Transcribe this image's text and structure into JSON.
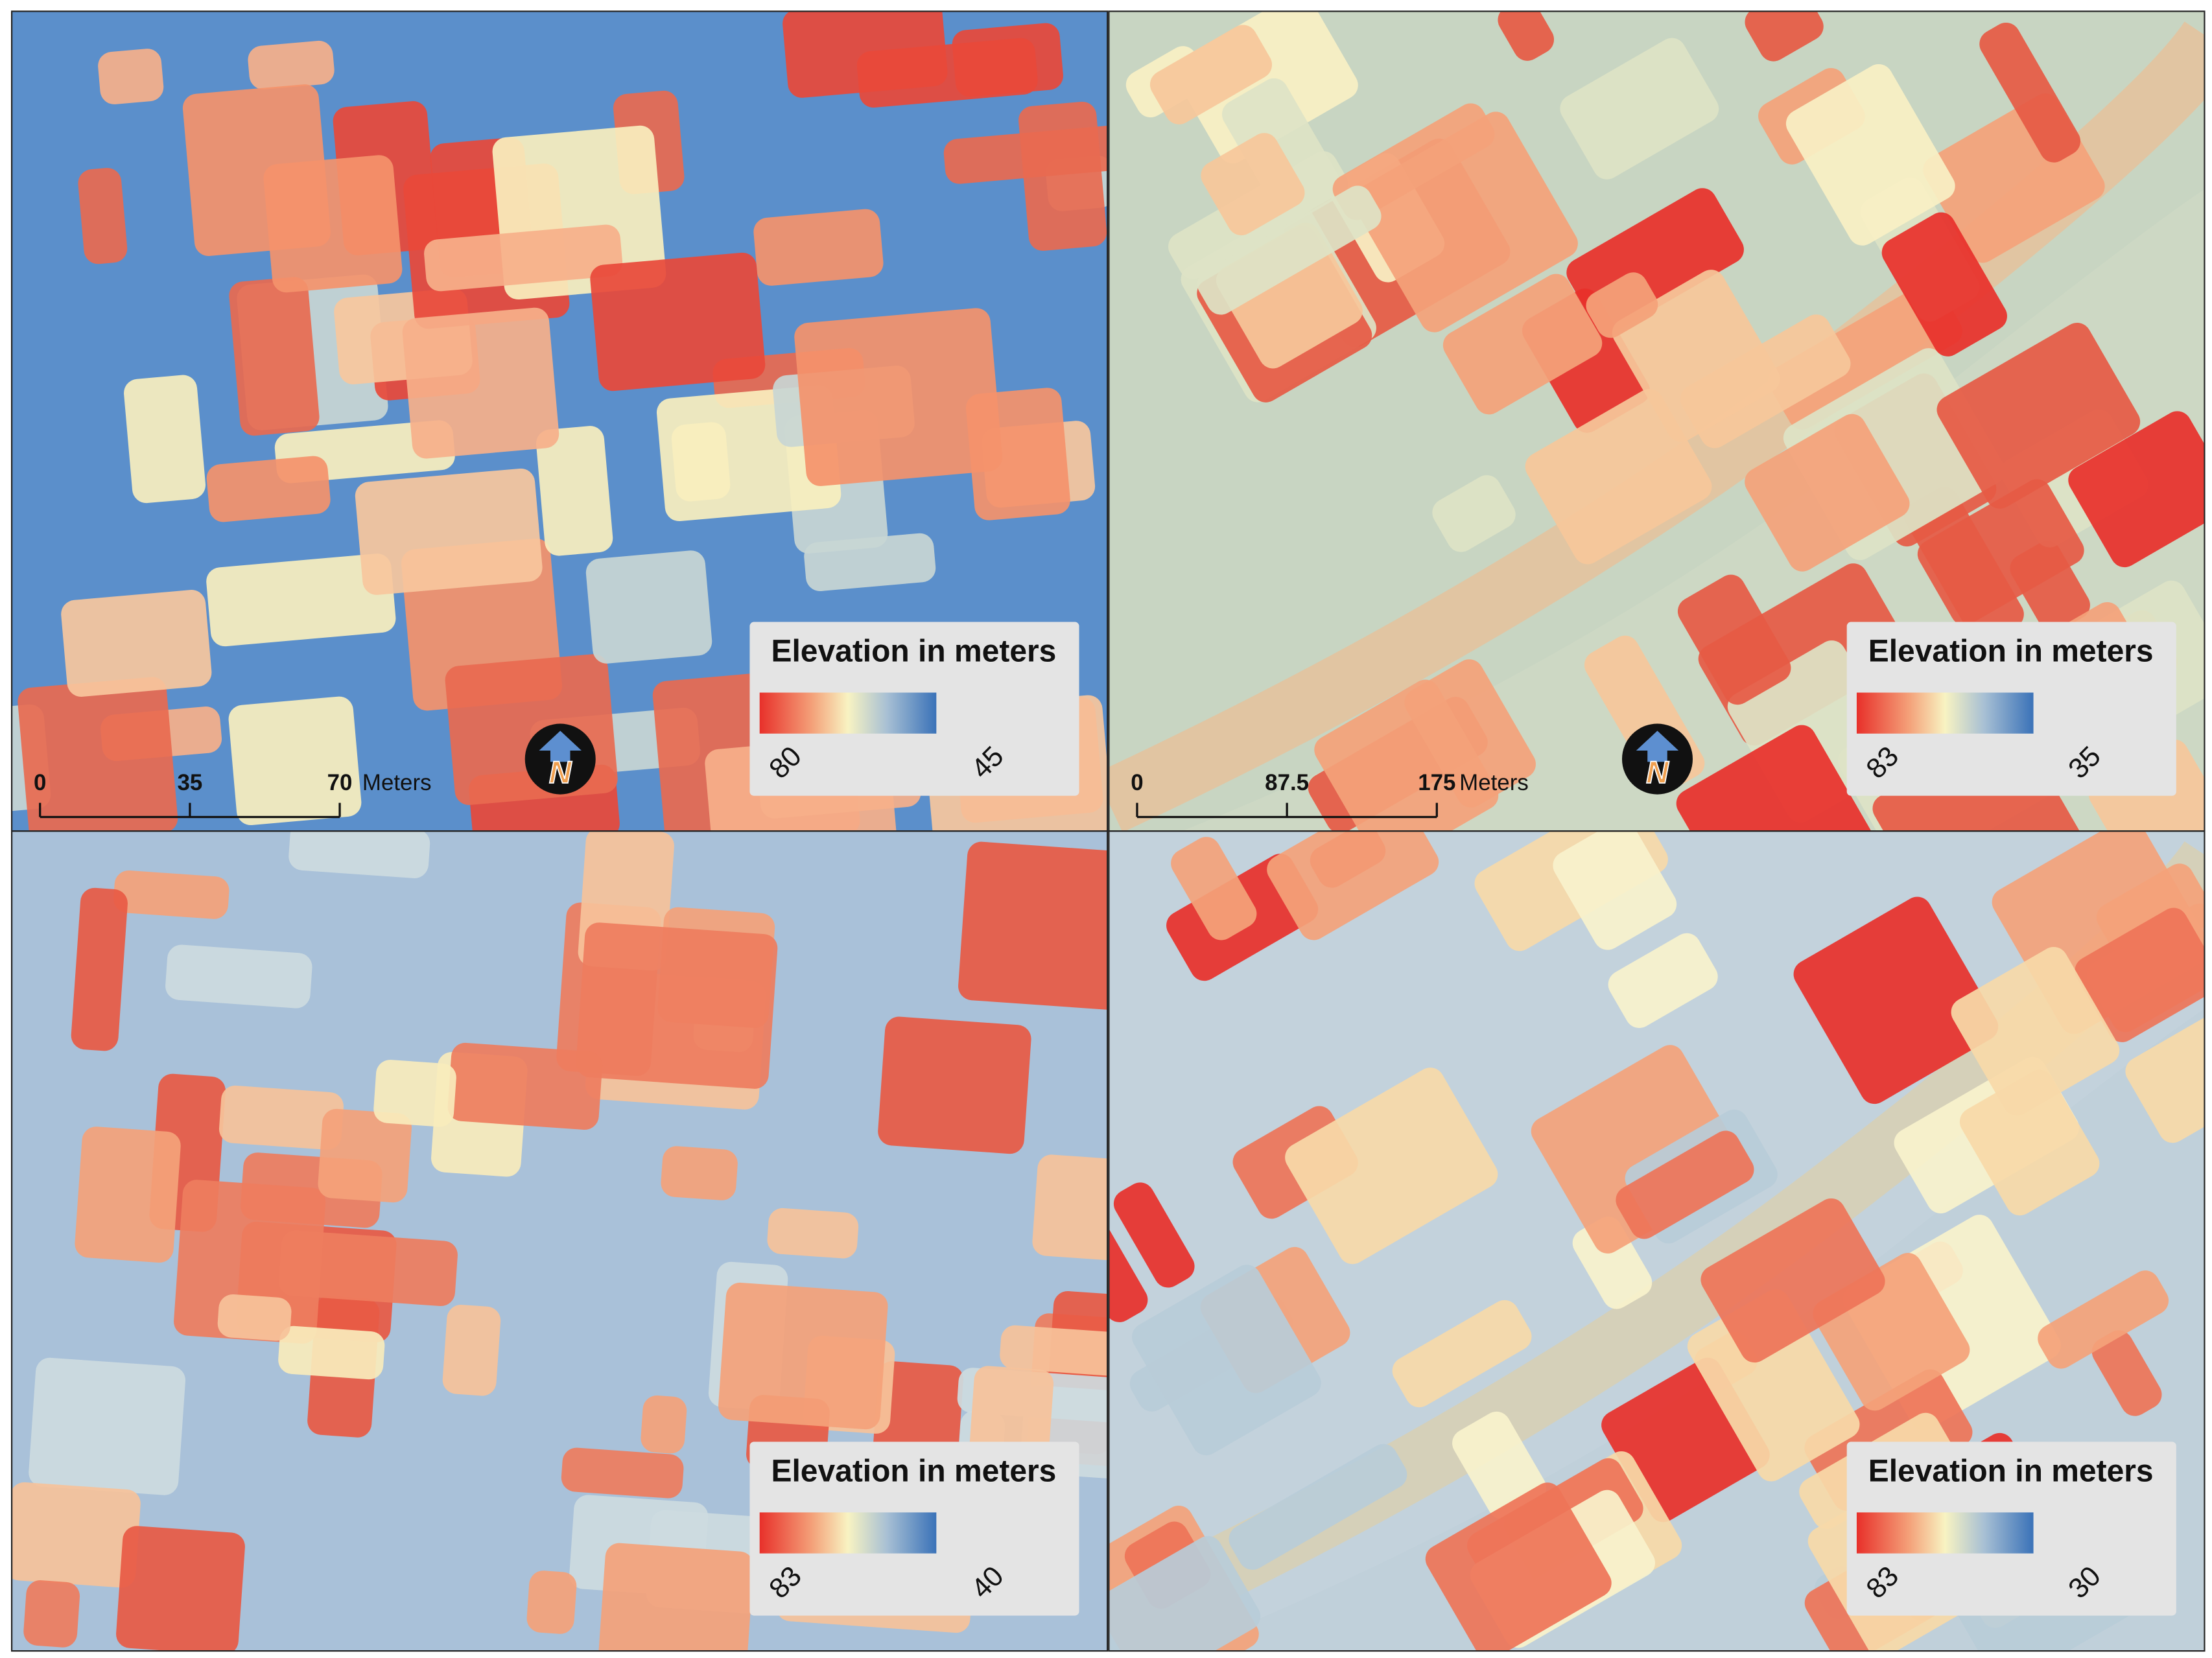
{
  "panels": [
    {
      "legend": {
        "title": "Elevation in meters",
        "high": 80,
        "low": 45
      },
      "scale_bar": {
        "ticks": [
          0,
          35,
          70
        ],
        "unit": "Meters"
      },
      "north_label": "N"
    },
    {
      "legend": {
        "title": "Elevation in meters",
        "high": 83,
        "low": 35
      },
      "scale_bar": {
        "ticks": [
          0,
          87.5,
          175
        ],
        "unit": "Meters"
      },
      "north_label": "N"
    },
    {
      "legend": {
        "title": "Elevation in meters",
        "high": 83,
        "low": 40
      }
    },
    {
      "legend": {
        "title": "Elevation in meters",
        "high": 83,
        "low": 30
      }
    }
  ]
}
